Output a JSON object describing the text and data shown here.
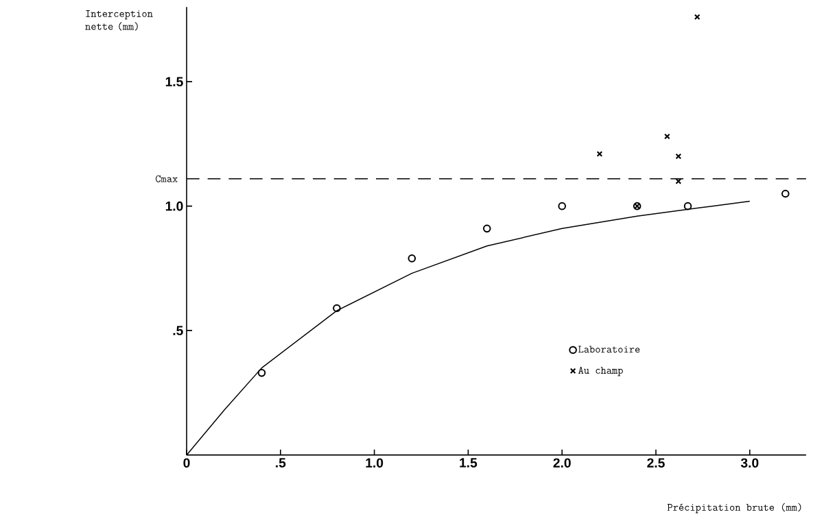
{
  "chart_data": {
    "type": "scatter",
    "xlabel": "Précipitation brute (mm)",
    "ylabel": "Interception nette (mm)",
    "xlim": [
      0,
      3.3
    ],
    "ylim": [
      0,
      1.8
    ],
    "xticks": [
      0,
      {
        "value": 0.5,
        "label": ".5"
      },
      {
        "value": 1,
        "label": "1.0"
      },
      1.5,
      {
        "value": 2,
        "label": "2.0"
      },
      2.5,
      {
        "value": 3,
        "label": "3.0"
      }
    ],
    "yticks": [
      {
        "value": 0.5,
        "label": ".5"
      },
      {
        "value": 1,
        "label": "1.0"
      },
      1.5
    ],
    "grid": false,
    "legend": "bottom right",
    "ref_lines": [
      {
        "axis": "y",
        "value": 1.11,
        "label": "Cmax",
        "line_style": "dashed",
        "color": "#000000"
      }
    ],
    "series": [
      {
        "type": "line",
        "color": "#000000",
        "marker": "none",
        "line_style": "solid",
        "x": [
          0,
          0.2,
          0.4,
          0.8,
          1.2,
          1.6,
          2.0,
          2.4,
          2.8,
          3.0
        ],
        "values": [
          0,
          0.18,
          0.35,
          0.58,
          0.73,
          0.84,
          0.91,
          0.96,
          1.0,
          1.02
        ]
      },
      {
        "name": "Laboratoire",
        "color": "#000000",
        "marker": "circle",
        "x": [
          0.4,
          0.8,
          1.2,
          1.6,
          2.0,
          2.4,
          2.67,
          3.19
        ],
        "values": [
          0.33,
          0.59,
          0.79,
          0.91,
          1.0,
          1.0,
          1.0,
          1.05
        ]
      },
      {
        "name": "Au champ",
        "color": "#000000",
        "marker": "cross",
        "x": [
          2.2,
          2.56,
          2.62,
          2.62,
          2.4,
          2.72
        ],
        "values": [
          1.21,
          1.28,
          1.2,
          1.1,
          1.0,
          1.76
        ]
      }
    ]
  }
}
